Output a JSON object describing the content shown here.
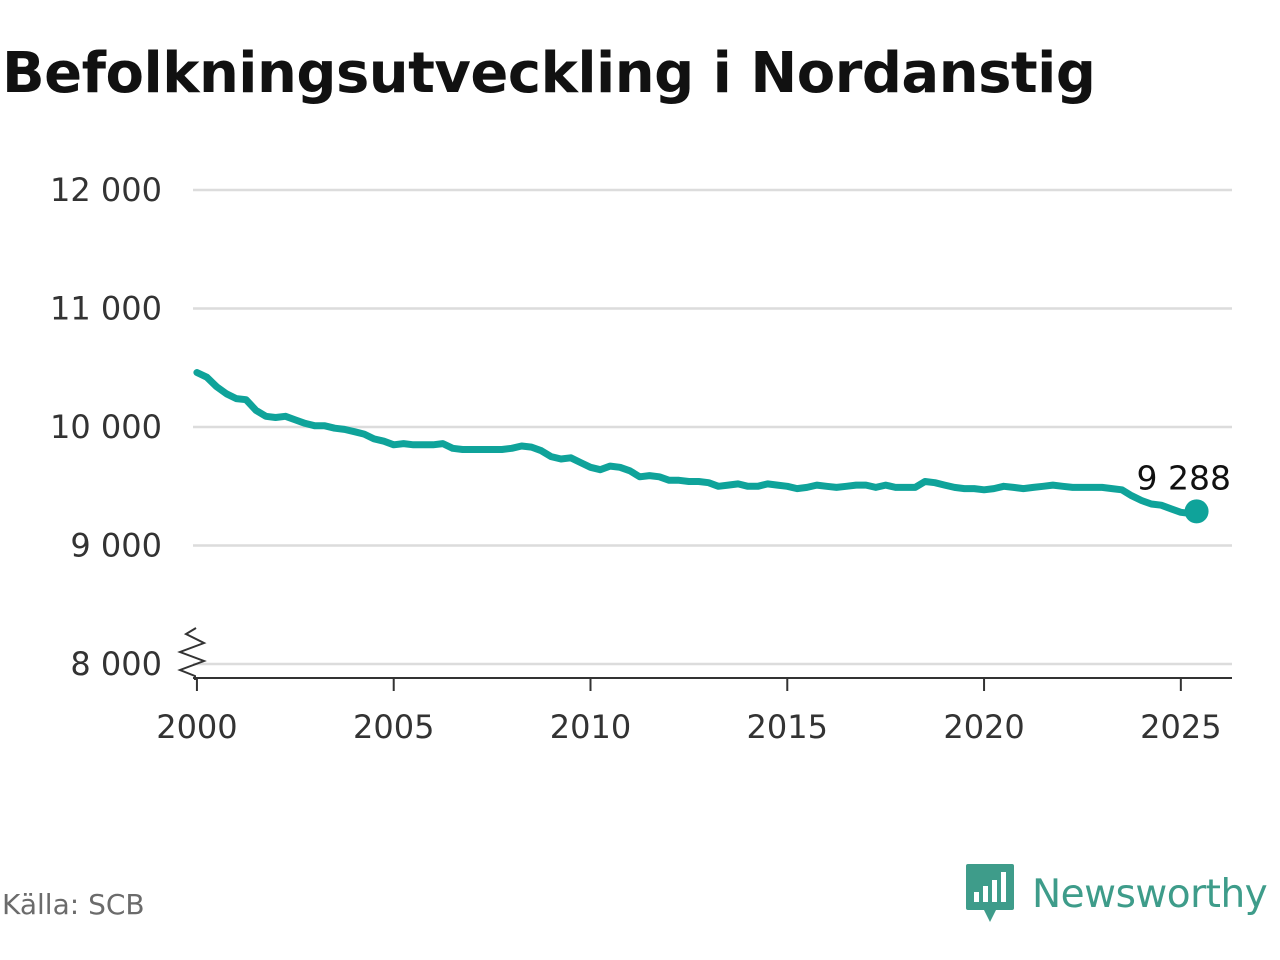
{
  "title": "Befolkningsutveckling i Nordanstig",
  "source": "Källa: SCB",
  "brand": {
    "name": "Newsworthy",
    "icon": "newsworthy-chart-bubble-icon"
  },
  "colors": {
    "line": "#0fa39a",
    "grid": "#dcdcdc",
    "axis": "#333333",
    "brand": "#3e9c8a",
    "title": "#111111"
  },
  "chart_data": {
    "type": "line",
    "title": "Befolkningsutveckling i Nordanstig",
    "xlabel": "",
    "ylabel": "",
    "xlim": [
      1999.9,
      2026.3
    ],
    "ylim": [
      8000,
      12000
    ],
    "axis_break": true,
    "grid": true,
    "legend": "none",
    "x_ticks": [
      "2000",
      "2005",
      "2010",
      "2015",
      "2020",
      "2025"
    ],
    "y_ticks": [
      "8 000",
      "9 000",
      "10 000",
      "11 000",
      "12 000"
    ],
    "end_label": "9 288",
    "series": [
      {
        "x": [
          2000.0,
          2000.25,
          2000.5,
          2000.75,
          2001.0,
          2001.25,
          2001.5,
          2001.75,
          2002.0,
          2002.25,
          2002.5,
          2002.75,
          2003.0,
          2003.25,
          2003.5,
          2003.75,
          2004.0,
          2004.25,
          2004.5,
          2004.75,
          2005.0,
          2005.25,
          2005.5,
          2005.75,
          2006.0,
          2006.25,
          2006.5,
          2006.75,
          2007.0,
          2007.25,
          2007.5,
          2007.75,
          2008.0,
          2008.25,
          2008.5,
          2008.75,
          2009.0,
          2009.25,
          2009.5,
          2009.75,
          2010.0,
          2010.25,
          2010.5,
          2010.75,
          2011.0,
          2011.25,
          2011.5,
          2011.75,
          2012.0,
          2012.25,
          2012.5,
          2012.75,
          2013.0,
          2013.25,
          2013.5,
          2013.75,
          2014.0,
          2014.25,
          2014.5,
          2014.75,
          2015.0,
          2015.25,
          2015.5,
          2015.75,
          2016.0,
          2016.25,
          2016.5,
          2016.75,
          2017.0,
          2017.25,
          2017.5,
          2017.75,
          2018.0,
          2018.25,
          2018.5,
          2018.75,
          2019.0,
          2019.25,
          2019.5,
          2019.75,
          2020.0,
          2020.25,
          2020.5,
          2020.75,
          2021.0,
          2021.25,
          2021.5,
          2021.75,
          2022.0,
          2022.25,
          2022.5,
          2022.75,
          2023.0,
          2023.25,
          2023.5,
          2023.75,
          2024.0,
          2024.25,
          2024.5,
          2024.75,
          2025.0,
          2025.25,
          2025.4
        ],
        "values": [
          10460,
          10420,
          10340,
          10280,
          10240,
          10230,
          10140,
          10090,
          10080,
          10090,
          10060,
          10030,
          10010,
          10010,
          9990,
          9980,
          9960,
          9940,
          9900,
          9880,
          9850,
          9860,
          9850,
          9850,
          9850,
          9860,
          9820,
          9810,
          9810,
          9810,
          9810,
          9810,
          9820,
          9840,
          9830,
          9800,
          9750,
          9730,
          9740,
          9700,
          9660,
          9640,
          9670,
          9660,
          9630,
          9580,
          9590,
          9580,
          9550,
          9550,
          9540,
          9540,
          9530,
          9500,
          9510,
          9520,
          9500,
          9500,
          9520,
          9510,
          9500,
          9480,
          9490,
          9510,
          9500,
          9490,
          9500,
          9510,
          9510,
          9490,
          9510,
          9490,
          9490,
          9490,
          9540,
          9530,
          9510,
          9490,
          9480,
          9480,
          9470,
          9480,
          9500,
          9490,
          9480,
          9490,
          9500,
          9510,
          9500,
          9490,
          9490,
          9490,
          9490,
          9480,
          9470,
          9420,
          9380,
          9350,
          9340,
          9310,
          9280,
          9270,
          9288
        ]
      }
    ]
  }
}
